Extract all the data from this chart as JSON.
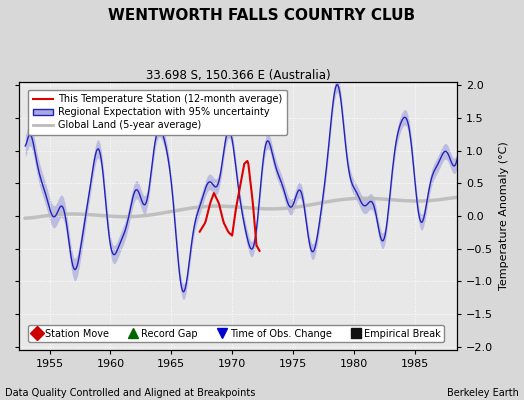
{
  "title": "WENTWORTH FALLS COUNTRY CLUB",
  "subtitle": "33.698 S, 150.366 E (Australia)",
  "ylabel": "Temperature Anomaly (°C)",
  "xlabel_note": "Data Quality Controlled and Aligned at Breakpoints",
  "credit": "Berkeley Earth",
  "xlim": [
    1952.5,
    1988.5
  ],
  "ylim": [
    -2.05,
    2.05
  ],
  "yticks": [
    -2,
    -1.5,
    -1,
    -0.5,
    0,
    0.5,
    1,
    1.5,
    2
  ],
  "xticks": [
    1955,
    1960,
    1965,
    1970,
    1975,
    1980,
    1985
  ],
  "bg_color": "#d8d8d8",
  "plot_bg_color": "#e8e8e8",
  "regional_color": "#2222bb",
  "regional_fill": "#aaaadd",
  "station_color": "#dd0000",
  "global_color": "#bbbbbb",
  "global_lw": 2.5
}
